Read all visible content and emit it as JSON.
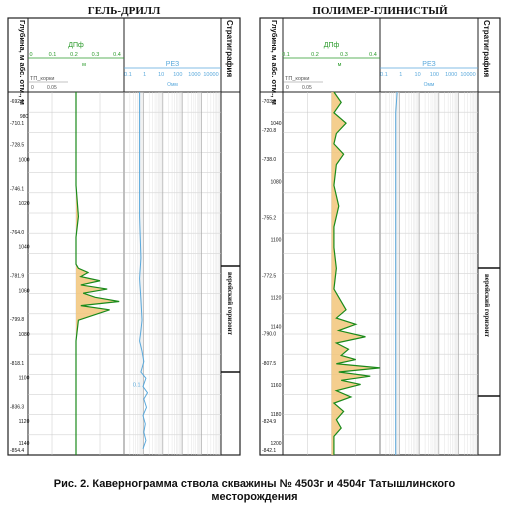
{
  "panels": [
    {
      "title": "ГЕЛЬ-ДРИЛЛ",
      "depth_header": "Глубина, м абс. отм., м",
      "strat_header": "Стратиграфия",
      "track1_label": "ДПф",
      "track1_ticks": [
        "0",
        "0.1",
        "0.2",
        "0.3",
        "0.4"
      ],
      "track1_unit": "м",
      "track1b_label": "ТП_корки",
      "track1b_ticks": [
        "0",
        "0.05"
      ],
      "track2_label": "РЕЗ",
      "track2_ticks": [
        "0.1",
        "1",
        "10",
        "100",
        "1000",
        "10000"
      ],
      "track2_unit": "Омм",
      "curve_tag": "0.1",
      "horizon": "верейский горизонт",
      "depth_labels": [
        {
          "md": "",
          "abs": "-692.1"
        },
        {
          "md": "980",
          "abs": "-710.1"
        },
        {
          "md": "",
          "abs": "-728.5"
        },
        {
          "md": "1000",
          "abs": ""
        },
        {
          "md": "",
          "abs": "-746.1"
        },
        {
          "md": "1020",
          "abs": ""
        },
        {
          "md": "",
          "abs": "-764.0"
        },
        {
          "md": "1040",
          "abs": ""
        },
        {
          "md": "",
          "abs": "-781.9"
        },
        {
          "md": "1060",
          "abs": ""
        },
        {
          "md": "",
          "abs": "-799.8"
        },
        {
          "md": "1080",
          "abs": ""
        },
        {
          "md": "",
          "abs": "-818.1"
        },
        {
          "md": "1100",
          "abs": ""
        },
        {
          "md": "",
          "abs": "-836.3"
        },
        {
          "md": "1120",
          "abs": ""
        },
        {
          "md": "1140",
          "abs": "-854.4"
        }
      ]
    },
    {
      "title": "ПОЛИМЕР-ГЛИНИСТЫЙ",
      "depth_header": "Глубина, м абс. отм., м",
      "strat_header": "Стратиграфия",
      "track1_label": "ДПф",
      "track1_ticks": [
        "0.1",
        "0.2",
        "0.3",
        "0.4"
      ],
      "track1_unit": "м",
      "track1b_label": "ТП_корки",
      "track1b_ticks": [
        "0",
        "0.05"
      ],
      "track2_label": "РЕЗ",
      "track2_ticks": [
        "0.1",
        "1",
        "10",
        "100",
        "1000",
        "10000"
      ],
      "track2_unit": "Омм",
      "curve_tag": "",
      "horizon": "верейский горизонт",
      "depth_labels": [
        {
          "md": "",
          "abs": "-703.5"
        },
        {
          "md": "1040",
          "abs": "-720.8"
        },
        {
          "md": "",
          "abs": "-738.0"
        },
        {
          "md": "1080",
          "abs": ""
        },
        {
          "md": "",
          "abs": "-755.2"
        },
        {
          "md": "1100",
          "abs": ""
        },
        {
          "md": "",
          "abs": "-772.5"
        },
        {
          "md": "1120",
          "abs": ""
        },
        {
          "md": "1140",
          "abs": "-790.0"
        },
        {
          "md": "",
          "abs": "-807.5"
        },
        {
          "md": "1160",
          "abs": ""
        },
        {
          "md": "1180",
          "abs": "-824.9"
        },
        {
          "md": "1200",
          "abs": "-842.1"
        }
      ]
    }
  ],
  "caption_line1": "Рис. 2. Кавернограмма ствола скважины № 4503г и 4504г Татышлинского",
  "caption_line2": "месторождения",
  "colors": {
    "green_curve": "#1a8a1a",
    "orange_fill": "#f2c57a",
    "blue_curve": "#5aa9dc",
    "grid": "#c8c8c8",
    "scale_text": "#2a9a2a"
  },
  "chart_data": [
    {
      "type": "line",
      "title": "ГЕЛЬ-ДРИЛЛ",
      "xlabel": "ДПф",
      "ylabel": "Глубина, м абс. отм., м",
      "xlim": [
        0,
        0.4
      ],
      "ylim": [
        970,
        1145
      ],
      "series": [
        {
          "name": "ДПф",
          "x": [
            0.2,
            0.2,
            0.2,
            0.2,
            0.21,
            0.2,
            0.2,
            0.2,
            0.2,
            0.21,
            0.25,
            0.22,
            0.3,
            0.22,
            0.33,
            0.23,
            0.28,
            0.38,
            0.22,
            0.34,
            0.21,
            0.2,
            0.2,
            0.2,
            0.2,
            0.2
          ],
          "y": [
            970,
            985,
            1000,
            1015,
            1030,
            1040,
            1045,
            1050,
            1053,
            1055,
            1057,
            1059,
            1061,
            1063,
            1065,
            1067,
            1069,
            1071,
            1073,
            1075,
            1080,
            1090,
            1100,
            1115,
            1130,
            1145
          ]
        },
        {
          "name": "РЕЗ",
          "x": [
            0.5,
            0.5,
            0.5,
            0.5,
            0.6,
            0.5,
            0.6,
            0.7,
            0.6,
            0.5,
            0.7,
            0.9,
            0.6,
            1.2,
            0.8,
            1.5,
            0.9,
            1.3,
            0.8,
            1.1,
            0.9,
            1.2,
            0.8
          ],
          "y": [
            970,
            990,
            1010,
            1030,
            1050,
            1060,
            1070,
            1080,
            1085,
            1090,
            1095,
            1100,
            1105,
            1108,
            1112,
            1115,
            1118,
            1122,
            1126,
            1130,
            1134,
            1138,
            1142
          ]
        }
      ]
    },
    {
      "type": "line",
      "title": "ПОЛИМЕР-ГЛИНИСТЫЙ",
      "xlabel": "ДПф",
      "ylabel": "Глубина, м абс. отм., м",
      "xlim": [
        0,
        0.4
      ],
      "ylim": [
        1030,
        1205
      ],
      "series": [
        {
          "name": "ДПф",
          "x": [
            0.21,
            0.24,
            0.21,
            0.26,
            0.22,
            0.21,
            0.25,
            0.22,
            0.21,
            0.23,
            0.21,
            0.21,
            0.22,
            0.21,
            0.26,
            0.22,
            0.3,
            0.23,
            0.34,
            0.22,
            0.27,
            0.24,
            0.3,
            0.22,
            0.4,
            0.23,
            0.36,
            0.24,
            0.32,
            0.22,
            0.28,
            0.21,
            0.25,
            0.22,
            0.24,
            0.21,
            0.21,
            0.21
          ],
          "y": [
            1030,
            1035,
            1040,
            1045,
            1050,
            1055,
            1060,
            1065,
            1075,
            1085,
            1095,
            1105,
            1115,
            1125,
            1135,
            1139,
            1142,
            1145,
            1148,
            1151,
            1154,
            1157,
            1159,
            1161,
            1163,
            1165,
            1167,
            1169,
            1171,
            1174,
            1177,
            1180,
            1184,
            1188,
            1192,
            1196,
            1200,
            1205
          ]
        },
        {
          "name": "РЕЗ",
          "x": [
            0.6,
            0.55,
            0.5,
            0.5,
            0.5,
            0.5,
            0.5,
            0.5,
            0.5
          ],
          "y": [
            1030,
            1035,
            1040,
            1060,
            1090,
            1120,
            1150,
            1180,
            1205
          ]
        }
      ]
    }
  ]
}
